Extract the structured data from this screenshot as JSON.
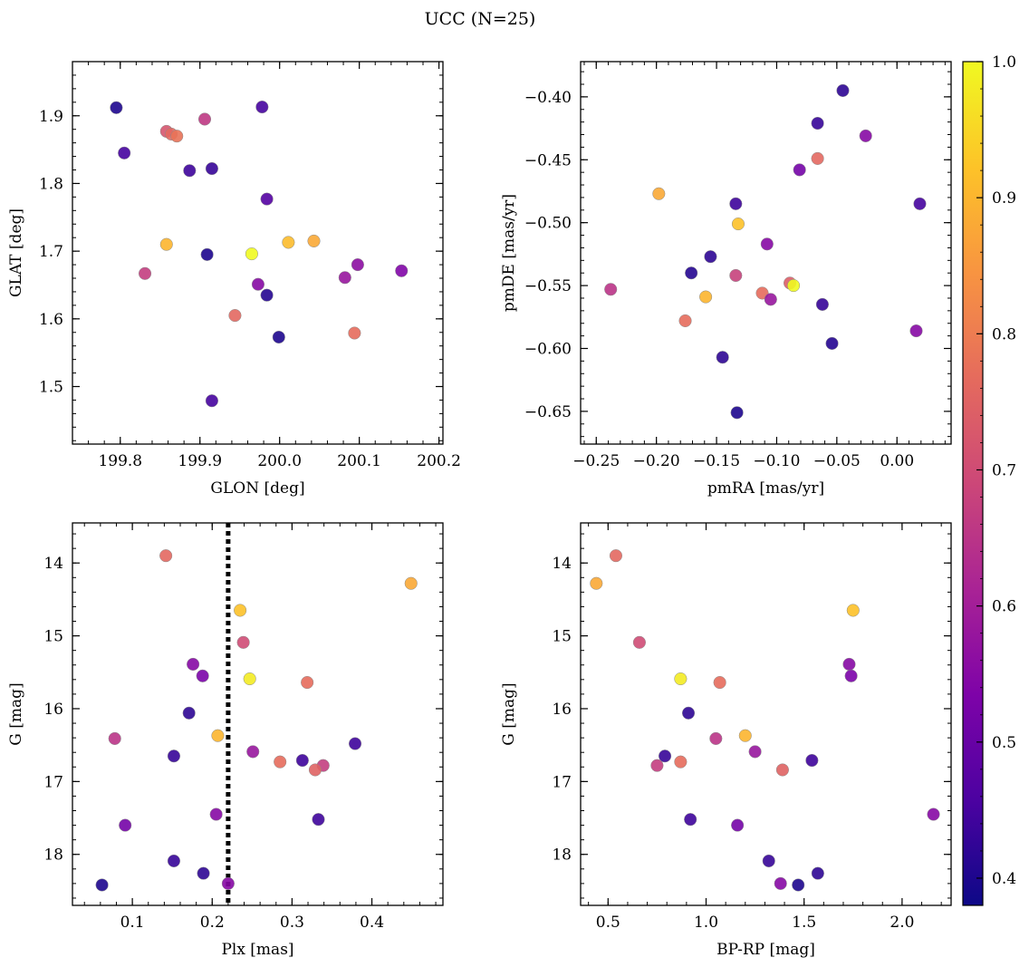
{
  "figure": {
    "title": "UCC (N=25)"
  },
  "colorbar": {
    "min": 0.38,
    "max": 1.0,
    "ticks": [
      0.4,
      0.5,
      0.6,
      0.7,
      0.8,
      0.9,
      1.0
    ],
    "tick_labels": [
      "0.4",
      "0.5",
      "0.6",
      "0.7",
      "0.8",
      "0.9",
      "1.0"
    ],
    "colormap": "plasma"
  },
  "chart_data": [
    {
      "type": "scatter",
      "xlabel": "GLON [deg]",
      "ylabel": "GLAT [deg]",
      "xlim": [
        199.74,
        200.205
      ],
      "ylim": [
        1.415,
        1.98
      ],
      "xticks": [
        199.8,
        199.9,
        200.0,
        200.1,
        200.2
      ],
      "xtick_labels": [
        "199.8",
        "199.9",
        "200.0",
        "200.1",
        "200.2"
      ],
      "yticks": [
        1.5,
        1.6,
        1.7,
        1.8,
        1.9
      ],
      "ytick_labels": [
        "1.5",
        "1.6",
        "1.7",
        "1.8",
        "1.9"
      ],
      "points": [
        {
          "x": 199.795,
          "y": 1.912,
          "c": 0.4
        },
        {
          "x": 199.805,
          "y": 1.845,
          "c": 0.45
        },
        {
          "x": 199.858,
          "y": 1.877,
          "c": 0.72
        },
        {
          "x": 199.864,
          "y": 1.873,
          "c": 0.76
        },
        {
          "x": 199.871,
          "y": 1.87,
          "c": 0.78
        },
        {
          "x": 199.906,
          "y": 1.895,
          "c": 0.66
        },
        {
          "x": 199.978,
          "y": 1.913,
          "c": 0.45
        },
        {
          "x": 199.887,
          "y": 1.819,
          "c": 0.44
        },
        {
          "x": 199.915,
          "y": 1.822,
          "c": 0.43
        },
        {
          "x": 199.984,
          "y": 1.777,
          "c": 0.47
        },
        {
          "x": 199.858,
          "y": 1.71,
          "c": 0.9
        },
        {
          "x": 199.909,
          "y": 1.695,
          "c": 0.4
        },
        {
          "x": 199.965,
          "y": 1.696,
          "c": 1.0
        },
        {
          "x": 200.011,
          "y": 1.713,
          "c": 0.91
        },
        {
          "x": 200.043,
          "y": 1.715,
          "c": 0.88
        },
        {
          "x": 199.831,
          "y": 1.667,
          "c": 0.67
        },
        {
          "x": 199.973,
          "y": 1.651,
          "c": 0.55
        },
        {
          "x": 199.984,
          "y": 1.635,
          "c": 0.41
        },
        {
          "x": 200.082,
          "y": 1.661,
          "c": 0.58
        },
        {
          "x": 200.098,
          "y": 1.68,
          "c": 0.56
        },
        {
          "x": 200.153,
          "y": 1.671,
          "c": 0.54
        },
        {
          "x": 199.944,
          "y": 1.605,
          "c": 0.76
        },
        {
          "x": 199.999,
          "y": 1.573,
          "c": 0.4
        },
        {
          "x": 200.094,
          "y": 1.579,
          "c": 0.77
        },
        {
          "x": 199.915,
          "y": 1.479,
          "c": 0.45
        }
      ]
    },
    {
      "type": "scatter",
      "xlabel": "pmRA [mas/yr]",
      "ylabel": "pmDE [mas/yr]",
      "xlim": [
        -0.263,
        0.045
      ],
      "ylim": [
        -0.676,
        -0.372
      ],
      "xticks": [
        -0.25,
        -0.2,
        -0.15,
        -0.1,
        -0.05,
        0.0
      ],
      "xtick_labels": [
        "−0.25",
        "−0.20",
        "−0.15",
        "−0.10",
        "−0.05",
        "0.00"
      ],
      "yticks": [
        -0.4,
        -0.45,
        -0.5,
        -0.55,
        -0.6,
        -0.65
      ],
      "ytick_labels": [
        "−0.40",
        "−0.45",
        "−0.50",
        "−0.55",
        "−0.60",
        "−0.65"
      ],
      "points": [
        {
          "x": -0.045,
          "y": -0.395,
          "c": 0.42
        },
        {
          "x": -0.066,
          "y": -0.421,
          "c": 0.43
        },
        {
          "x": -0.026,
          "y": -0.431,
          "c": 0.55
        },
        {
          "x": -0.066,
          "y": -0.449,
          "c": 0.76
        },
        {
          "x": -0.081,
          "y": -0.458,
          "c": 0.52
        },
        {
          "x": -0.198,
          "y": -0.477,
          "c": 0.88
        },
        {
          "x": -0.134,
          "y": -0.485,
          "c": 0.44
        },
        {
          "x": 0.019,
          "y": -0.485,
          "c": 0.45
        },
        {
          "x": -0.132,
          "y": -0.501,
          "c": 0.92
        },
        {
          "x": -0.108,
          "y": -0.517,
          "c": 0.55
        },
        {
          "x": -0.155,
          "y": -0.527,
          "c": 0.42
        },
        {
          "x": -0.171,
          "y": -0.54,
          "c": 0.41
        },
        {
          "x": -0.134,
          "y": -0.542,
          "c": 0.68
        },
        {
          "x": -0.089,
          "y": -0.548,
          "c": 0.74
        },
        {
          "x": -0.086,
          "y": -0.55,
          "c": 1.0
        },
        {
          "x": -0.238,
          "y": -0.553,
          "c": 0.65
        },
        {
          "x": -0.112,
          "y": -0.556,
          "c": 0.77
        },
        {
          "x": -0.159,
          "y": -0.559,
          "c": 0.9
        },
        {
          "x": -0.105,
          "y": -0.561,
          "c": 0.58
        },
        {
          "x": -0.062,
          "y": -0.565,
          "c": 0.43
        },
        {
          "x": -0.176,
          "y": -0.578,
          "c": 0.77
        },
        {
          "x": 0.016,
          "y": -0.586,
          "c": 0.55
        },
        {
          "x": -0.054,
          "y": -0.596,
          "c": 0.41
        },
        {
          "x": -0.145,
          "y": -0.607,
          "c": 0.42
        },
        {
          "x": -0.133,
          "y": -0.651,
          "c": 0.4
        }
      ]
    },
    {
      "type": "scatter",
      "xlabel": "Plx [mas]",
      "ylabel": "G [mag]",
      "xlim": [
        0.025,
        0.489
      ],
      "ylim": [
        18.7,
        13.45
      ],
      "y_inverted": true,
      "xticks": [
        0.1,
        0.2,
        0.3,
        0.4
      ],
      "xtick_labels": [
        "0.1",
        "0.2",
        "0.3",
        "0.4"
      ],
      "yticks": [
        14,
        15,
        16,
        17,
        18
      ],
      "ytick_labels": [
        "14",
        "15",
        "16",
        "17",
        "18"
      ],
      "vline": {
        "x": 0.22,
        "style": "dotted"
      },
      "points": [
        {
          "x": 0.142,
          "y": 13.9,
          "c": 0.76
        },
        {
          "x": 0.449,
          "y": 14.28,
          "c": 0.88
        },
        {
          "x": 0.235,
          "y": 14.65,
          "c": 0.92
        },
        {
          "x": 0.239,
          "y": 15.09,
          "c": 0.7
        },
        {
          "x": 0.176,
          "y": 15.39,
          "c": 0.55
        },
        {
          "x": 0.188,
          "y": 15.55,
          "c": 0.53
        },
        {
          "x": 0.247,
          "y": 15.59,
          "c": 0.98
        },
        {
          "x": 0.319,
          "y": 15.64,
          "c": 0.77
        },
        {
          "x": 0.171,
          "y": 16.06,
          "c": 0.42
        },
        {
          "x": 0.207,
          "y": 16.37,
          "c": 0.9
        },
        {
          "x": 0.078,
          "y": 16.41,
          "c": 0.65
        },
        {
          "x": 0.379,
          "y": 16.48,
          "c": 0.44
        },
        {
          "x": 0.251,
          "y": 16.59,
          "c": 0.58
        },
        {
          "x": 0.152,
          "y": 16.65,
          "c": 0.43
        },
        {
          "x": 0.313,
          "y": 16.71,
          "c": 0.44
        },
        {
          "x": 0.285,
          "y": 16.73,
          "c": 0.77
        },
        {
          "x": 0.339,
          "y": 16.78,
          "c": 0.67
        },
        {
          "x": 0.329,
          "y": 16.84,
          "c": 0.75
        },
        {
          "x": 0.205,
          "y": 17.45,
          "c": 0.55
        },
        {
          "x": 0.333,
          "y": 17.52,
          "c": 0.44
        },
        {
          "x": 0.091,
          "y": 17.6,
          "c": 0.52
        },
        {
          "x": 0.152,
          "y": 18.09,
          "c": 0.43
        },
        {
          "x": 0.189,
          "y": 18.26,
          "c": 0.42
        },
        {
          "x": 0.062,
          "y": 18.42,
          "c": 0.4
        },
        {
          "x": 0.22,
          "y": 18.4,
          "c": 0.55
        }
      ]
    },
    {
      "type": "scatter",
      "xlabel": "BP-RP [mag]",
      "ylabel": "G [mag]",
      "xlim": [
        0.36,
        2.25
      ],
      "ylim": [
        18.7,
        13.45
      ],
      "y_inverted": true,
      "xticks": [
        0.5,
        1.0,
        1.5,
        2.0
      ],
      "xtick_labels": [
        "0.5",
        "1.0",
        "1.5",
        "2.0"
      ],
      "yticks": [
        14,
        15,
        16,
        17,
        18
      ],
      "ytick_labels": [
        "14",
        "15",
        "16",
        "17",
        "18"
      ],
      "points": [
        {
          "x": 0.54,
          "y": 13.9,
          "c": 0.76
        },
        {
          "x": 0.44,
          "y": 14.28,
          "c": 0.88
        },
        {
          "x": 1.75,
          "y": 14.65,
          "c": 0.92
        },
        {
          "x": 0.66,
          "y": 15.09,
          "c": 0.7
        },
        {
          "x": 1.73,
          "y": 15.39,
          "c": 0.55
        },
        {
          "x": 1.74,
          "y": 15.55,
          "c": 0.53
        },
        {
          "x": 0.87,
          "y": 15.59,
          "c": 0.98
        },
        {
          "x": 1.07,
          "y": 15.64,
          "c": 0.77
        },
        {
          "x": 0.91,
          "y": 16.06,
          "c": 0.42
        },
        {
          "x": 1.2,
          "y": 16.37,
          "c": 0.9
        },
        {
          "x": 1.05,
          "y": 16.41,
          "c": 0.65
        },
        {
          "x": 1.25,
          "y": 16.59,
          "c": 0.58
        },
        {
          "x": 0.79,
          "y": 16.65,
          "c": 0.43
        },
        {
          "x": 1.54,
          "y": 16.71,
          "c": 0.44
        },
        {
          "x": 0.87,
          "y": 16.73,
          "c": 0.77
        },
        {
          "x": 0.75,
          "y": 16.78,
          "c": 0.67
        },
        {
          "x": 1.39,
          "y": 16.84,
          "c": 0.75
        },
        {
          "x": 2.16,
          "y": 17.45,
          "c": 0.55
        },
        {
          "x": 0.92,
          "y": 17.52,
          "c": 0.44
        },
        {
          "x": 1.16,
          "y": 17.6,
          "c": 0.52
        },
        {
          "x": 1.32,
          "y": 18.09,
          "c": 0.43
        },
        {
          "x": 1.57,
          "y": 18.26,
          "c": 0.42
        },
        {
          "x": 1.47,
          "y": 18.42,
          "c": 0.4
        },
        {
          "x": 1.38,
          "y": 18.4,
          "c": 0.55
        }
      ]
    }
  ]
}
